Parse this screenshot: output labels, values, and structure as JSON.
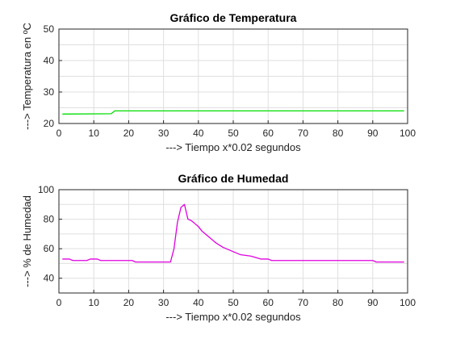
{
  "chart_data": [
    {
      "type": "line",
      "title": "Gráfico de Temperatura",
      "xlabel": "---> Tiempo x*0.02 segundos",
      "ylabel": "---> Temperatura en ºC",
      "xlim": [
        0,
        100
      ],
      "ylim": [
        20,
        50
      ],
      "xticks": [
        0,
        10,
        20,
        30,
        40,
        50,
        60,
        70,
        80,
        90,
        100
      ],
      "yticks": [
        20,
        30,
        40,
        50
      ],
      "grid": true,
      "series": [
        {
          "color": "#00dd00",
          "x": [
            1,
            15,
            16,
            20,
            30,
            40,
            50,
            60,
            70,
            80,
            90,
            99
          ],
          "y": [
            23,
            23.1,
            24,
            24,
            24,
            24,
            24,
            24,
            24,
            24,
            24,
            24
          ]
        }
      ]
    },
    {
      "type": "line",
      "title": "Gráfico de Humedad",
      "xlabel": "---> Tiempo x*0.02 segundos",
      "ylabel": "---> % de Humedad",
      "xlim": [
        0,
        100
      ],
      "ylim": [
        30,
        100
      ],
      "xticks": [
        0,
        10,
        20,
        30,
        40,
        50,
        60,
        70,
        80,
        90,
        100
      ],
      "yticks": [
        40,
        60,
        80,
        100
      ],
      "grid": true,
      "series": [
        {
          "color": "#e000e0",
          "x": [
            1,
            3,
            4,
            8,
            9,
            11,
            12,
            15,
            21,
            22,
            28,
            32,
            33,
            34,
            35,
            36,
            37,
            38,
            39,
            40,
            41,
            43,
            45,
            47,
            50,
            52,
            55,
            58,
            60,
            61,
            70,
            80,
            90,
            91,
            99
          ],
          "y": [
            53,
            53,
            52,
            52,
            53,
            53,
            52,
            52,
            52,
            51,
            51,
            51,
            60,
            78,
            88,
            90,
            80,
            79,
            77,
            75,
            72,
            68,
            64,
            61,
            58,
            56,
            55,
            53,
            53,
            52,
            52,
            52,
            52,
            51,
            51
          ]
        }
      ]
    }
  ]
}
